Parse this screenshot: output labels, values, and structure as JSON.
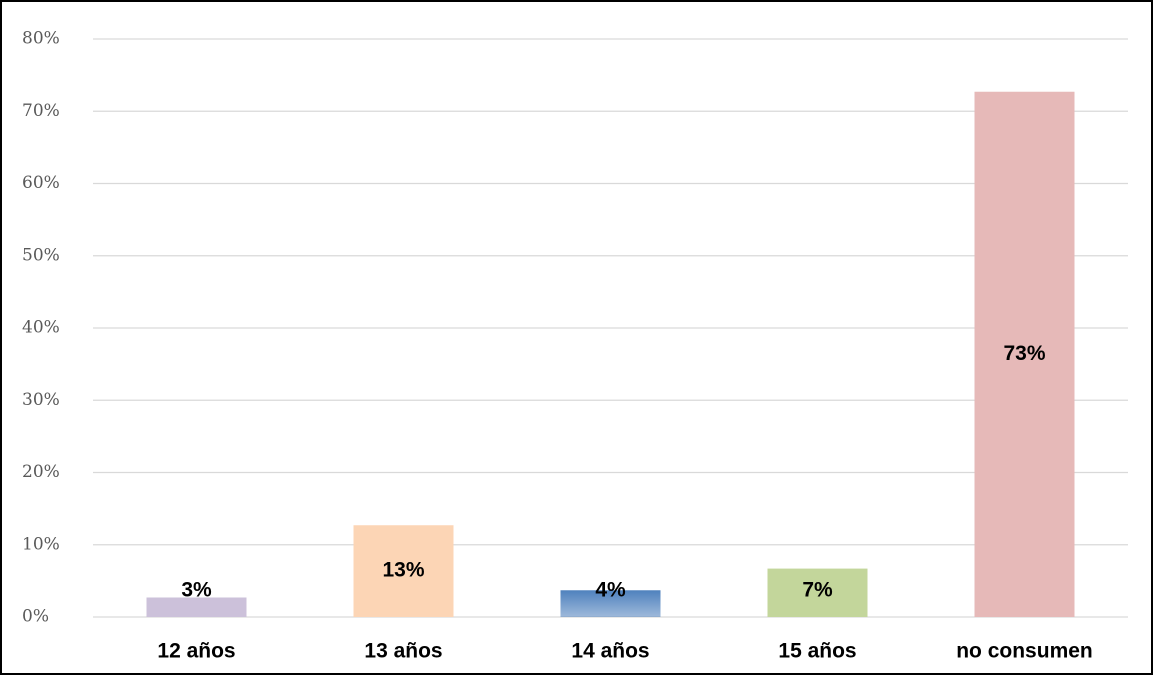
{
  "chart_data": {
    "type": "bar",
    "categories": [
      "12 años",
      "13 años",
      "14 años",
      "15 años",
      "no consumen"
    ],
    "values": [
      2.7,
      12.7,
      3.7,
      6.7,
      72.7
    ],
    "value_labels": [
      "3%",
      "13%",
      "4%",
      "7%",
      "73%"
    ],
    "colors": [
      "#ccc1da",
      "#fcd5b5",
      "#4f81bd",
      "#c3d69b",
      "#e6b9b8"
    ],
    "ylim": [
      0,
      80
    ],
    "yticks": [
      {
        "value": 0,
        "label": "0%"
      },
      {
        "value": 10,
        "label": "10%"
      },
      {
        "value": 20,
        "label": "20%"
      },
      {
        "value": 30,
        "label": "30%"
      },
      {
        "value": 40,
        "label": "40%"
      },
      {
        "value": 50,
        "label": "50%"
      },
      {
        "value": 60,
        "label": "60%"
      },
      {
        "value": 70,
        "label": "70%"
      },
      {
        "value": 80,
        "label": "80%"
      }
    ],
    "grid": true
  }
}
